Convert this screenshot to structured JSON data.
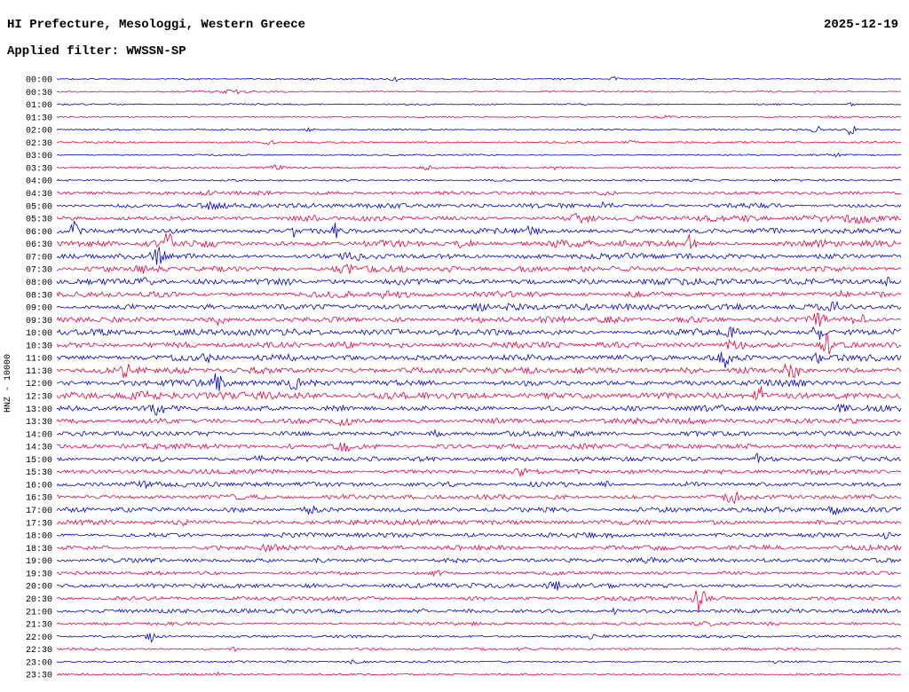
{
  "header": {
    "title": "HI Prefecture, Mesologgi, Western Greece",
    "date": "2025-12-19",
    "filter_label": "Applied filter: WWSSN-SP"
  },
  "axis": {
    "scale_label": "HNZ - 10000"
  },
  "chart_data": {
    "type": "line",
    "subtype": "helicorder-seismogram",
    "station_channel": "HNZ",
    "gain": 10000,
    "date": "2025-12-19",
    "filter": "WWSSN-SP",
    "minutes_per_line": 30,
    "num_lines": 48,
    "legend_position": "none",
    "grid": false,
    "colors": {
      "blue": "#0000cc",
      "red": "#e4003c"
    },
    "rows": [
      {
        "label": "00:00",
        "color": "blue",
        "noise": 0.7,
        "events": [
          {
            "x": 0.4,
            "amp": 2.5,
            "w": 5
          },
          {
            "x": 0.66,
            "amp": 4,
            "w": 4
          }
        ]
      },
      {
        "label": "00:30",
        "color": "red",
        "noise": 0.7,
        "events": [
          {
            "x": 0.21,
            "amp": 2.5,
            "w": 12
          }
        ]
      },
      {
        "label": "01:00",
        "color": "blue",
        "noise": 0.7,
        "events": [
          {
            "x": 0.94,
            "amp": 2,
            "w": 4
          }
        ]
      },
      {
        "label": "01:30",
        "color": "red",
        "noise": 0.7,
        "events": [
          {
            "x": 0.72,
            "amp": 2,
            "w": 10
          }
        ]
      },
      {
        "label": "02:00",
        "color": "blue",
        "noise": 0.7,
        "events": [
          {
            "x": 0.3,
            "amp": 2,
            "w": 5
          },
          {
            "x": 0.9,
            "amp": 6,
            "w": 5
          },
          {
            "x": 0.94,
            "amp": 8,
            "w": 4
          }
        ]
      },
      {
        "label": "02:30",
        "color": "red",
        "noise": 0.8,
        "events": [
          {
            "x": 0.25,
            "amp": 2,
            "w": 10
          },
          {
            "x": 0.68,
            "amp": 1.5,
            "w": 8
          }
        ]
      },
      {
        "label": "03:00",
        "color": "blue",
        "noise": 0.7,
        "events": [
          {
            "x": 0.92,
            "amp": 2.5,
            "w": 6
          }
        ]
      },
      {
        "label": "03:30",
        "color": "red",
        "noise": 0.8,
        "events": [
          {
            "x": 0.26,
            "amp": 2,
            "w": 8
          },
          {
            "x": 0.44,
            "amp": 2,
            "w": 8
          },
          {
            "x": 0.59,
            "amp": 2,
            "w": 8
          }
        ]
      },
      {
        "label": "04:00",
        "color": "blue",
        "noise": 0.9,
        "events": []
      },
      {
        "label": "04:30",
        "color": "red",
        "noise": 1.6,
        "events": [
          {
            "x": 0.18,
            "amp": 2,
            "w": 10
          },
          {
            "x": 0.65,
            "amp": 2,
            "w": 10
          }
        ]
      },
      {
        "label": "05:00",
        "color": "blue",
        "noise": 1.8,
        "events": [
          {
            "x": 0.18,
            "amp": 2.5,
            "w": 8
          },
          {
            "x": 0.65,
            "amp": 4,
            "w": 6
          }
        ]
      },
      {
        "label": "05:30",
        "color": "red",
        "noise": 2.4,
        "events": [
          {
            "x": 0.3,
            "amp": 3,
            "w": 10
          },
          {
            "x": 0.62,
            "amp": 5,
            "w": 14
          },
          {
            "x": 0.95,
            "amp": 5,
            "w": 16
          }
        ]
      },
      {
        "label": "06:00",
        "color": "blue",
        "noise": 2.4,
        "events": [
          {
            "x": 0.02,
            "amp": 9,
            "w": 5
          },
          {
            "x": 0.28,
            "amp": 11,
            "w": 4
          },
          {
            "x": 0.33,
            "amp": 10,
            "w": 4
          },
          {
            "x": 0.56,
            "amp": 3,
            "w": 8
          }
        ]
      },
      {
        "label": "06:30",
        "color": "red",
        "noise": 2.6,
        "events": [
          {
            "x": 0.13,
            "amp": 11,
            "w": 6
          },
          {
            "x": 0.48,
            "amp": 3,
            "w": 8
          },
          {
            "x": 0.75,
            "amp": 8,
            "w": 4
          }
        ]
      },
      {
        "label": "07:00",
        "color": "blue",
        "noise": 2.4,
        "events": [
          {
            "x": 0.12,
            "amp": 8,
            "w": 7
          },
          {
            "x": 0.35,
            "amp": 4,
            "w": 10
          }
        ]
      },
      {
        "label": "07:30",
        "color": "red",
        "noise": 2.4,
        "events": [
          {
            "x": 0.1,
            "amp": 3,
            "w": 8
          },
          {
            "x": 0.34,
            "amp": 5,
            "w": 12
          }
        ]
      },
      {
        "label": "08:00",
        "color": "blue",
        "noise": 2.6,
        "events": [
          {
            "x": 0.1,
            "amp": 5,
            "w": 8
          },
          {
            "x": 0.42,
            "amp": 3,
            "w": 8
          },
          {
            "x": 0.98,
            "amp": 5,
            "w": 6
          }
        ]
      },
      {
        "label": "08:30",
        "color": "red",
        "noise": 2.4,
        "events": [
          {
            "x": 0.39,
            "amp": 4,
            "w": 8
          },
          {
            "x": 0.93,
            "amp": 3,
            "w": 8
          }
        ]
      },
      {
        "label": "09:00",
        "color": "blue",
        "noise": 2.4,
        "events": [
          {
            "x": 0.5,
            "amp": 3,
            "w": 8
          },
          {
            "x": 0.92,
            "amp": 4,
            "w": 8
          }
        ]
      },
      {
        "label": "09:30",
        "color": "red",
        "noise": 2.6,
        "events": [
          {
            "x": 0.19,
            "amp": 6,
            "w": 8
          },
          {
            "x": 0.9,
            "amp": 6,
            "w": 8
          },
          {
            "x": 0.95,
            "amp": 5,
            "w": 6
          }
        ]
      },
      {
        "label": "10:00",
        "color": "blue",
        "noise": 2.6,
        "events": [
          {
            "x": 0.8,
            "amp": 4,
            "w": 8
          },
          {
            "x": 0.9,
            "amp": 8,
            "w": 6
          }
        ]
      },
      {
        "label": "10:30",
        "color": "red",
        "noise": 2.6,
        "events": [
          {
            "x": 0.8,
            "amp": 5,
            "w": 10
          },
          {
            "x": 0.91,
            "amp": 13,
            "w": 6
          }
        ]
      },
      {
        "label": "11:00",
        "color": "blue",
        "noise": 2.6,
        "events": [
          {
            "x": 0.18,
            "amp": 8,
            "w": 6
          },
          {
            "x": 0.79,
            "amp": 10,
            "w": 6
          },
          {
            "x": 0.9,
            "amp": 6,
            "w": 6
          }
        ]
      },
      {
        "label": "11:30",
        "color": "red",
        "noise": 2.6,
        "events": [
          {
            "x": 0.08,
            "amp": 5,
            "w": 8
          },
          {
            "x": 0.87,
            "amp": 7,
            "w": 12
          }
        ]
      },
      {
        "label": "12:00",
        "color": "blue",
        "noise": 2.6,
        "events": [
          {
            "x": 0.19,
            "amp": 10,
            "w": 5
          },
          {
            "x": 0.28,
            "amp": 10,
            "w": 5
          },
          {
            "x": 0.56,
            "amp": 4,
            "w": 8
          }
        ]
      },
      {
        "label": "12:30",
        "color": "red",
        "noise": 2.6,
        "events": [
          {
            "x": 0.1,
            "amp": 4,
            "w": 10
          },
          {
            "x": 0.83,
            "amp": 13,
            "w": 5
          }
        ]
      },
      {
        "label": "13:00",
        "color": "blue",
        "noise": 2.4,
        "events": [
          {
            "x": 0.12,
            "amp": 6,
            "w": 7
          },
          {
            "x": 0.93,
            "amp": 5,
            "w": 6
          }
        ]
      },
      {
        "label": "13:30",
        "color": "red",
        "noise": 2.2,
        "events": [
          {
            "x": 0.34,
            "amp": 4,
            "w": 10
          }
        ]
      },
      {
        "label": "14:00",
        "color": "blue",
        "noise": 2.0,
        "events": [
          {
            "x": 0.45,
            "amp": 3,
            "w": 8
          }
        ]
      },
      {
        "label": "14:30",
        "color": "red",
        "noise": 2.0,
        "events": [
          {
            "x": 0.34,
            "amp": 3.5,
            "w": 10
          }
        ]
      },
      {
        "label": "15:00",
        "color": "blue",
        "noise": 2.0,
        "events": [
          {
            "x": 0.24,
            "amp": 3,
            "w": 8
          },
          {
            "x": 0.83,
            "amp": 5,
            "w": 5
          }
        ]
      },
      {
        "label": "15:30",
        "color": "red",
        "noise": 2.0,
        "events": [
          {
            "x": 0.55,
            "amp": 2.5,
            "w": 8
          }
        ]
      },
      {
        "label": "16:00",
        "color": "blue",
        "noise": 2.0,
        "events": [
          {
            "x": 0.1,
            "amp": 2.5,
            "w": 8
          },
          {
            "x": 0.65,
            "amp": 3,
            "w": 6
          }
        ]
      },
      {
        "label": "16:30",
        "color": "red",
        "noise": 2.0,
        "events": [
          {
            "x": 0.8,
            "amp": 5,
            "w": 8
          }
        ]
      },
      {
        "label": "17:00",
        "color": "blue",
        "noise": 2.0,
        "events": [
          {
            "x": 0.3,
            "amp": 4,
            "w": 6
          },
          {
            "x": 0.92,
            "amp": 4,
            "w": 6
          }
        ]
      },
      {
        "label": "17:30",
        "color": "red",
        "noise": 1.9,
        "events": [
          {
            "x": 0.15,
            "amp": 2.5,
            "w": 8
          }
        ]
      },
      {
        "label": "18:00",
        "color": "blue",
        "noise": 1.9,
        "events": [
          {
            "x": 0.98,
            "amp": 4,
            "w": 5
          }
        ]
      },
      {
        "label": "18:30",
        "color": "red",
        "noise": 1.9,
        "events": [
          {
            "x": 0.25,
            "amp": 3,
            "w": 10
          }
        ]
      },
      {
        "label": "19:00",
        "color": "blue",
        "noise": 1.8,
        "events": [
          {
            "x": 0.7,
            "amp": 3,
            "w": 6
          }
        ]
      },
      {
        "label": "19:30",
        "color": "red",
        "noise": 1.6,
        "events": [
          {
            "x": 0.45,
            "amp": 2,
            "w": 8
          }
        ]
      },
      {
        "label": "20:00",
        "color": "blue",
        "noise": 1.8,
        "events": [
          {
            "x": 0.59,
            "amp": 5,
            "w": 10
          }
        ]
      },
      {
        "label": "20:30",
        "color": "red",
        "noise": 1.8,
        "events": [
          {
            "x": 0.76,
            "amp": 14,
            "w": 6
          }
        ]
      },
      {
        "label": "21:00",
        "color": "blue",
        "noise": 1.6,
        "events": [
          {
            "x": 0.43,
            "amp": 2.5,
            "w": 6
          },
          {
            "x": 0.66,
            "amp": 3,
            "w": 5
          }
        ]
      },
      {
        "label": "21:30",
        "color": "red",
        "noise": 1.3,
        "events": [
          {
            "x": 0.77,
            "amp": 2,
            "w": 6
          }
        ]
      },
      {
        "label": "22:00",
        "color": "blue",
        "noise": 1.1,
        "events": [
          {
            "x": 0.11,
            "amp": 6,
            "w": 4
          },
          {
            "x": 0.63,
            "amp": 2,
            "w": 6
          }
        ]
      },
      {
        "label": "22:30",
        "color": "red",
        "noise": 1.0,
        "events": [
          {
            "x": 0.21,
            "amp": 2,
            "w": 6
          },
          {
            "x": 0.55,
            "amp": 2.5,
            "w": 5
          }
        ]
      },
      {
        "label": "23:00",
        "color": "blue",
        "noise": 0.9,
        "events": [
          {
            "x": 0.35,
            "amp": 2,
            "w": 8
          },
          {
            "x": 0.85,
            "amp": 2,
            "w": 6
          }
        ]
      },
      {
        "label": "23:30",
        "color": "red",
        "noise": 0.8,
        "events": [
          {
            "x": 0.19,
            "amp": 2,
            "w": 5
          }
        ]
      }
    ]
  }
}
